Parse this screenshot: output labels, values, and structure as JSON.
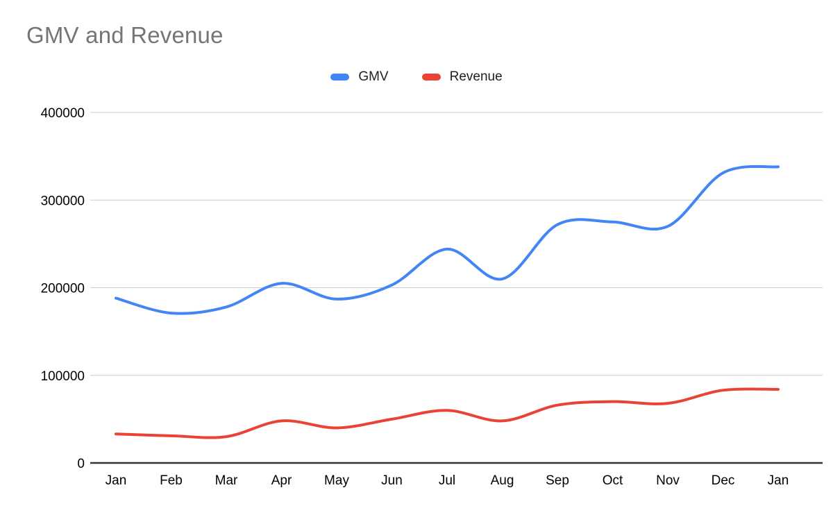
{
  "chart": {
    "title": "GMV and Revenue",
    "title_color": "#757575",
    "axis_label_color": "#000000",
    "gridline_color": "#cccccc",
    "baseline_color": "#333333",
    "background": "#ffffff"
  },
  "chart_data": {
    "type": "line",
    "title": "GMV and Revenue",
    "smooth": true,
    "grid": true,
    "legend_position": "top-center",
    "xlabel": "",
    "ylabel": "",
    "categories": [
      "Jan",
      "Feb",
      "Mar",
      "Apr",
      "May",
      "Jun",
      "Jul",
      "Aug",
      "Sep",
      "Oct",
      "Nov",
      "Dec",
      "Jan"
    ],
    "series": [
      {
        "name": "GMV",
        "color": "#4285F4",
        "values": [
          188000,
          171000,
          178000,
          205000,
          187000,
          203000,
          244000,
          210000,
          272000,
          275000,
          270000,
          331000,
          338000
        ]
      },
      {
        "name": "Revenue",
        "color": "#EA4335",
        "values": [
          33000,
          31000,
          30000,
          48000,
          40000,
          50000,
          60000,
          48000,
          66000,
          70000,
          68000,
          83000,
          84000
        ]
      }
    ],
    "ylim": [
      0,
      400000
    ],
    "yticks": [
      0,
      100000,
      200000,
      300000,
      400000
    ],
    "ytick_labels": [
      "0",
      "100000",
      "200000",
      "300000",
      "400000"
    ]
  }
}
